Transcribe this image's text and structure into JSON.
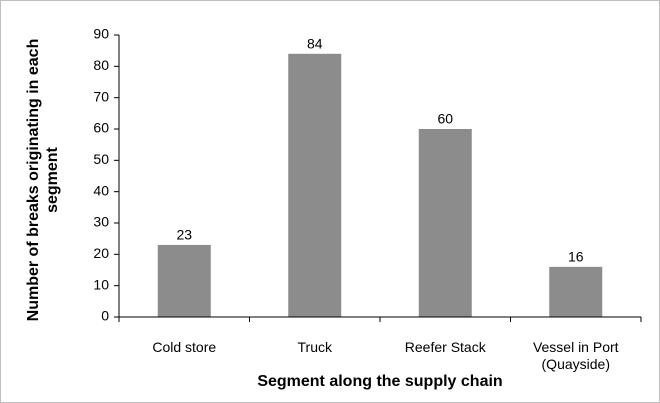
{
  "chart_data": {
    "type": "bar",
    "x_label": "Segment along the supply chain",
    "y_label": "Number of breaks originating in each segment",
    "categories": [
      "Cold store",
      "Truck",
      "Reefer Stack",
      "Vessel in Port (Quayside)"
    ],
    "values": [
      23,
      84,
      60,
      16
    ],
    "color": "#8c8c8c",
    "ylim": [
      0,
      90
    ],
    "yticks": [
      0,
      10,
      20,
      30,
      40,
      50,
      60,
      70,
      80,
      90
    ],
    "grid": false
  }
}
